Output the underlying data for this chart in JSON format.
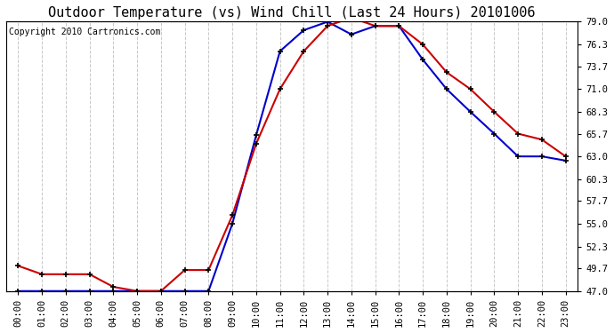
{
  "title": "Outdoor Temperature (vs) Wind Chill (Last 24 Hours) 20101006",
  "copyright": "Copyright 2010 Cartronics.com",
  "hours": [
    "00:00",
    "01:00",
    "02:00",
    "03:00",
    "04:00",
    "05:00",
    "06:00",
    "07:00",
    "08:00",
    "09:00",
    "10:00",
    "11:00",
    "12:00",
    "13:00",
    "14:00",
    "15:00",
    "16:00",
    "17:00",
    "18:00",
    "19:00",
    "20:00",
    "21:00",
    "22:00",
    "23:00"
  ],
  "temp": [
    50.0,
    49.0,
    49.0,
    49.0,
    47.5,
    47.0,
    47.0,
    49.5,
    49.5,
    56.0,
    64.5,
    71.0,
    75.5,
    78.5,
    79.5,
    78.5,
    78.5,
    76.3,
    73.0,
    71.0,
    68.3,
    65.7,
    65.0,
    63.0
  ],
  "wind_chill": [
    47.0,
    47.0,
    47.0,
    47.0,
    47.0,
    47.0,
    47.0,
    47.0,
    47.0,
    55.0,
    65.5,
    75.5,
    78.0,
    79.0,
    77.5,
    78.5,
    78.5,
    74.5,
    71.0,
    68.3,
    65.7,
    63.0,
    63.0,
    62.5
  ],
  "temp_color": "#cc0000",
  "wind_chill_color": "#0000cc",
  "marker": "+",
  "marker_color": "#000000",
  "marker_size": 5,
  "ylim": [
    47.0,
    79.0
  ],
  "yticks": [
    47.0,
    49.7,
    52.3,
    55.0,
    57.7,
    60.3,
    63.0,
    65.7,
    68.3,
    71.0,
    73.7,
    76.3,
    79.0
  ],
  "grid_color": "#c8c8c8",
  "grid_style": "--",
  "bg_color": "#ffffff",
  "plot_bg_color": "#ffffff",
  "title_fontsize": 11,
  "copyright_fontsize": 7,
  "tick_fontsize": 7.5,
  "line_width": 1.5,
  "figwidth": 6.9,
  "figheight": 3.75,
  "dpi": 100
}
